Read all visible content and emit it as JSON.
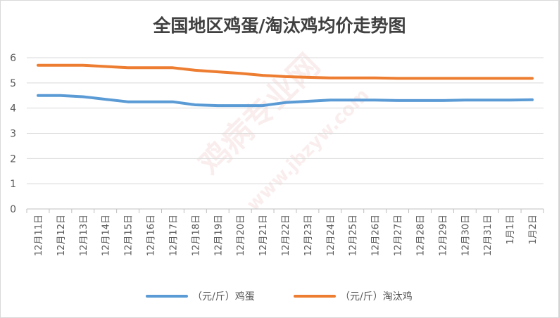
{
  "chart_data": {
    "type": "line",
    "title": "全国地区鸡蛋/淘汰鸡均价走势图",
    "xlabel": "",
    "ylabel": "",
    "ylim": [
      0,
      6
    ],
    "yticks": [
      0,
      1,
      2,
      3,
      4,
      5,
      6
    ],
    "grid": true,
    "legend_position": "bottom",
    "categories": [
      "12月11日",
      "12月12日",
      "12月13日",
      "12月14日",
      "12月15日",
      "12月16日",
      "12月17日",
      "12月18日",
      "12月19日",
      "12月20日",
      "12月21日",
      "12月22日",
      "12月23日",
      "12月24日",
      "12月25日",
      "12月26日",
      "12月27日",
      "12月28日",
      "12月29日",
      "12月30日",
      "12月31日",
      "1月1日",
      "1月2日"
    ],
    "series": [
      {
        "name": "（元/斤）鸡蛋",
        "color": "#5b9bd5",
        "values": [
          4.5,
          4.5,
          4.45,
          4.35,
          4.25,
          4.25,
          4.25,
          4.13,
          4.1,
          4.1,
          4.1,
          4.22,
          4.27,
          4.32,
          4.32,
          4.32,
          4.3,
          4.3,
          4.3,
          4.32,
          4.32,
          4.32,
          4.33
        ]
      },
      {
        "name": "（元/斤）淘汰鸡",
        "color": "#ed7d31",
        "values": [
          5.7,
          5.7,
          5.7,
          5.65,
          5.6,
          5.6,
          5.6,
          5.5,
          5.44,
          5.38,
          5.3,
          5.25,
          5.22,
          5.2,
          5.2,
          5.2,
          5.18,
          5.18,
          5.18,
          5.18,
          5.18,
          5.18,
          5.18
        ]
      }
    ]
  },
  "watermark": {
    "text_main": "鸡病专业网",
    "text_url": "www.jbzyw.com"
  }
}
